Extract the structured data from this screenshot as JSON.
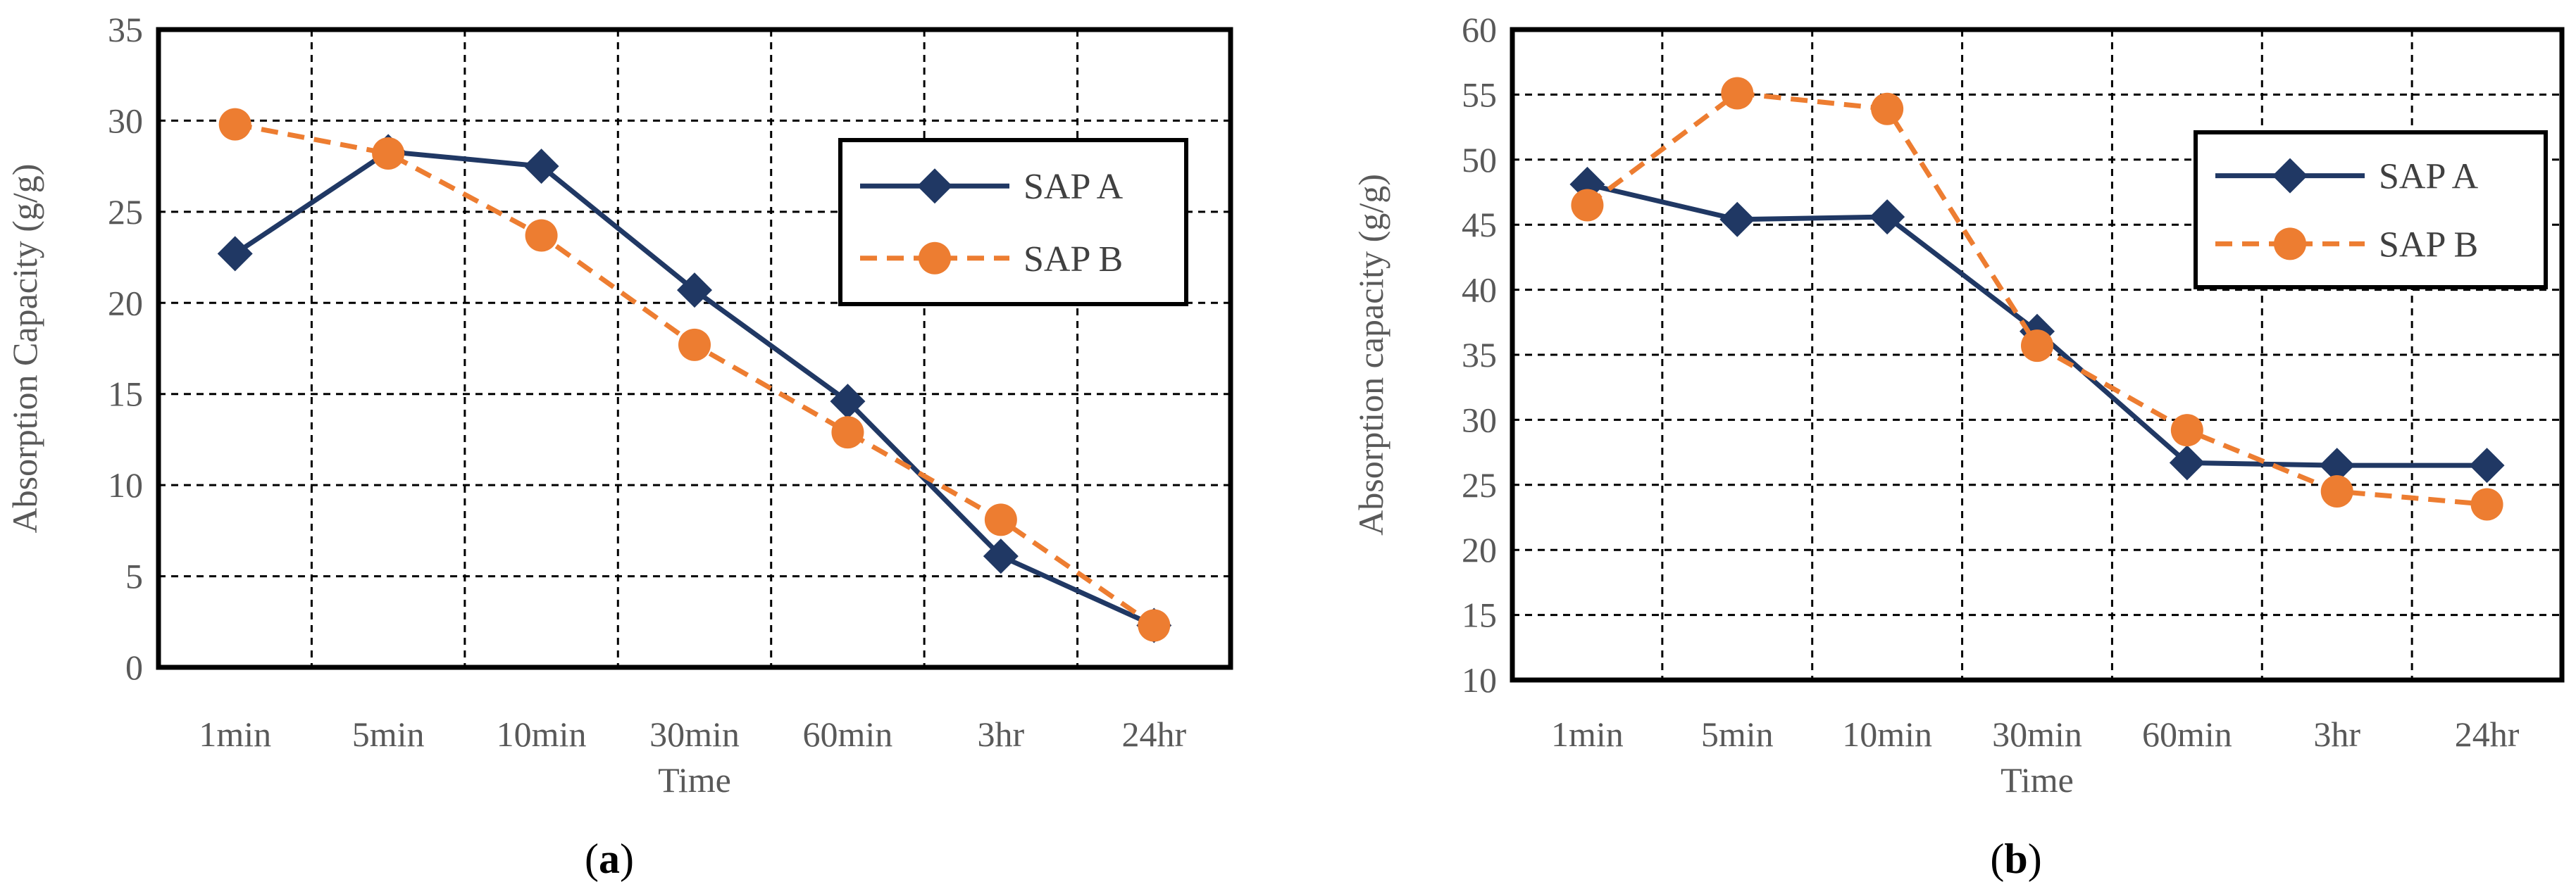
{
  "chart_data": [
    {
      "type": "line",
      "caption_open": "(",
      "caption_letter": "a",
      "caption_close": ")",
      "categories": [
        "1min",
        "5min",
        "10min",
        "30min",
        "60min",
        "3hr",
        "24hr"
      ],
      "xlabel": "Time",
      "ylabel": "Absorption Capacity (g/g)",
      "ylim": [
        0,
        35
      ],
      "yticks": [
        0,
        5,
        10,
        15,
        20,
        25,
        30,
        35
      ],
      "grid": true,
      "legend_position": "top-right",
      "series": [
        {
          "name": "SAP A",
          "color": "#203864",
          "line_style": "solid",
          "marker": "diamond",
          "values": [
            22.7,
            28.3,
            27.5,
            20.7,
            14.6,
            6.1,
            2.3
          ]
        },
        {
          "name": "SAP B",
          "color": "#ED7D31",
          "line_style": "dashed",
          "marker": "circle",
          "values": [
            29.8,
            28.2,
            23.7,
            17.7,
            12.9,
            8.1,
            2.3
          ]
        }
      ]
    },
    {
      "type": "line",
      "caption_open": "(",
      "caption_letter": "b",
      "caption_close": ")",
      "categories": [
        "1min",
        "5min",
        "10min",
        "30min",
        "60min",
        "3hr",
        "24hr"
      ],
      "xlabel": "Time",
      "ylabel": "Absorption capacity  (g/g)",
      "ylim": [
        10,
        60
      ],
      "yticks": [
        10,
        15,
        20,
        25,
        30,
        35,
        40,
        45,
        50,
        55,
        60
      ],
      "grid": true,
      "legend_position": "top-right",
      "series": [
        {
          "name": "SAP A",
          "color": "#203864",
          "line_style": "solid",
          "marker": "diamond",
          "values": [
            48.1,
            45.4,
            45.6,
            36.8,
            26.7,
            26.5,
            26.5
          ]
        },
        {
          "name": "SAP B",
          "color": "#ED7D31",
          "line_style": "dashed",
          "marker": "circle",
          "values": [
            46.5,
            55.1,
            53.9,
            35.7,
            29.2,
            24.5,
            23.5
          ]
        }
      ]
    }
  ]
}
